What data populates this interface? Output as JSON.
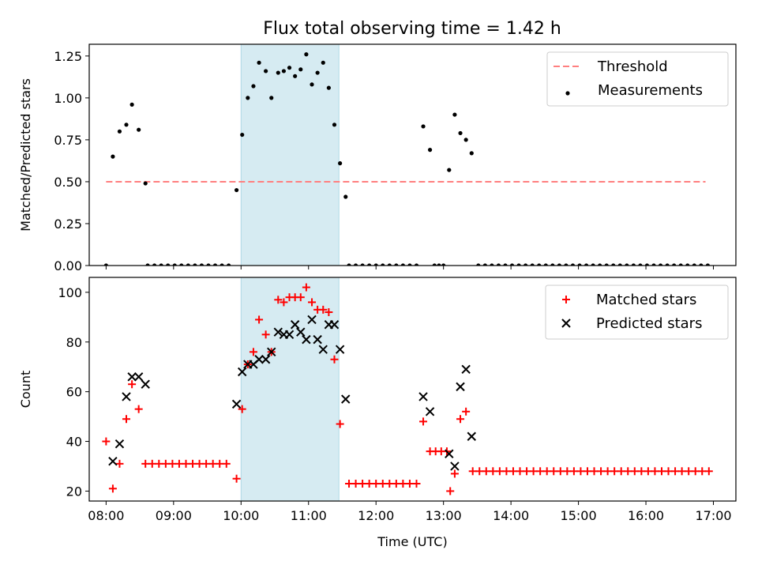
{
  "figure": {
    "title": "Flux total observing time = 1.42 h"
  },
  "chart_data": [
    {
      "type": "scatter",
      "panel": "top",
      "title": "Flux total observing time = 1.42 h",
      "ylabel": "Matched/Predicted stars",
      "xlabel": "",
      "xlim": [
        "07:45",
        "17:20"
      ],
      "ylim": [
        0,
        1.32
      ],
      "yticks": [
        "0.00",
        "0.25",
        "0.50",
        "0.75",
        "1.00",
        "1.25"
      ],
      "xticks": [
        "08:00",
        "09:00",
        "10:00",
        "11:00",
        "12:00",
        "13:00",
        "14:00",
        "15:00",
        "16:00",
        "17:00"
      ],
      "shaded_span": {
        "start": "10:00",
        "end": "11:27",
        "color": "#add8e6"
      },
      "threshold": {
        "name": "Threshold",
        "value": 0.5,
        "start": "08:00",
        "end": "16:53",
        "color": "#ff7f7f"
      },
      "legend": [
        "Threshold",
        "Measurements"
      ],
      "legend_position": "top-right",
      "series": [
        {
          "name": "Measurements",
          "color": "#000000",
          "marker": "dot",
          "points": [
            [
              "08:00",
              0.0
            ],
            [
              "08:06",
              0.65
            ],
            [
              "08:12",
              0.8
            ],
            [
              "08:18",
              0.84
            ],
            [
              "08:23",
              0.96
            ],
            [
              "08:29",
              0.81
            ],
            [
              "08:35",
              0.49
            ],
            [
              "08:37",
              0.0
            ],
            [
              "08:43",
              0.0
            ],
            [
              "08:49",
              0.0
            ],
            [
              "08:55",
              0.0
            ],
            [
              "09:01",
              0.0
            ],
            [
              "09:07",
              0.0
            ],
            [
              "09:13",
              0.0
            ],
            [
              "09:19",
              0.0
            ],
            [
              "09:25",
              0.0
            ],
            [
              "09:31",
              0.0
            ],
            [
              "09:37",
              0.0
            ],
            [
              "09:43",
              0.0
            ],
            [
              "09:49",
              0.0
            ],
            [
              "09:56",
              0.45
            ],
            [
              "10:01",
              0.78
            ],
            [
              "10:06",
              1.0
            ],
            [
              "10:11",
              1.07
            ],
            [
              "10:16",
              1.21
            ],
            [
              "10:22",
              1.16
            ],
            [
              "10:27",
              1.0
            ],
            [
              "10:33",
              1.15
            ],
            [
              "10:38",
              1.16
            ],
            [
              "10:43",
              1.18
            ],
            [
              "10:48",
              1.13
            ],
            [
              "10:53",
              1.17
            ],
            [
              "10:58",
              1.26
            ],
            [
              "11:03",
              1.08
            ],
            [
              "11:08",
              1.15
            ],
            [
              "11:13",
              1.21
            ],
            [
              "11:18",
              1.06
            ],
            [
              "11:23",
              0.84
            ],
            [
              "11:28",
              0.61
            ],
            [
              "11:33",
              0.41
            ],
            [
              "11:36",
              0.0
            ],
            [
              "11:42",
              0.0
            ],
            [
              "11:48",
              0.0
            ],
            [
              "11:54",
              0.0
            ],
            [
              "12:00",
              0.0
            ],
            [
              "12:06",
              0.0
            ],
            [
              "12:12",
              0.0
            ],
            [
              "12:18",
              0.0
            ],
            [
              "12:24",
              0.0
            ],
            [
              "12:30",
              0.0
            ],
            [
              "12:36",
              0.0
            ],
            [
              "12:42",
              0.83
            ],
            [
              "12:48",
              0.69
            ],
            [
              "12:52",
              0.0
            ],
            [
              "12:56",
              0.0
            ],
            [
              "13:00",
              0.0
            ],
            [
              "13:05",
              0.57
            ],
            [
              "13:10",
              0.9
            ],
            [
              "13:15",
              0.79
            ],
            [
              "13:20",
              0.75
            ],
            [
              "13:25",
              0.67
            ],
            [
              "13:31",
              0.0
            ],
            [
              "13:37",
              0.0
            ],
            [
              "13:43",
              0.0
            ],
            [
              "13:49",
              0.0
            ],
            [
              "13:55",
              0.0
            ],
            [
              "14:01",
              0.0
            ],
            [
              "14:07",
              0.0
            ],
            [
              "14:13",
              0.0
            ],
            [
              "14:19",
              0.0
            ],
            [
              "14:25",
              0.0
            ],
            [
              "14:31",
              0.0
            ],
            [
              "14:37",
              0.0
            ],
            [
              "14:43",
              0.0
            ],
            [
              "14:49",
              0.0
            ],
            [
              "14:55",
              0.0
            ],
            [
              "15:01",
              0.0
            ],
            [
              "15:07",
              0.0
            ],
            [
              "15:13",
              0.0
            ],
            [
              "15:19",
              0.0
            ],
            [
              "15:25",
              0.0
            ],
            [
              "15:31",
              0.0
            ],
            [
              "15:37",
              0.0
            ],
            [
              "15:43",
              0.0
            ],
            [
              "15:49",
              0.0
            ],
            [
              "15:55",
              0.0
            ],
            [
              "16:01",
              0.0
            ],
            [
              "16:07",
              0.0
            ],
            [
              "16:13",
              0.0
            ],
            [
              "16:19",
              0.0
            ],
            [
              "16:25",
              0.0
            ],
            [
              "16:31",
              0.0
            ],
            [
              "16:37",
              0.0
            ],
            [
              "16:43",
              0.0
            ],
            [
              "16:49",
              0.0
            ],
            [
              "16:55",
              0.0
            ]
          ]
        }
      ]
    },
    {
      "type": "scatter",
      "panel": "bottom",
      "title": "",
      "ylabel": "Count",
      "xlabel": "Time (UTC)",
      "xlim": [
        "07:45",
        "17:20"
      ],
      "ylim": [
        16,
        106
      ],
      "yticks": [
        "20",
        "40",
        "60",
        "80",
        "100"
      ],
      "xticks": [
        "08:00",
        "09:00",
        "10:00",
        "11:00",
        "12:00",
        "13:00",
        "14:00",
        "15:00",
        "16:00",
        "17:00"
      ],
      "shaded_span": {
        "start": "10:00",
        "end": "11:27",
        "color": "#add8e6"
      },
      "legend": [
        "Matched stars",
        "Predicted stars"
      ],
      "legend_position": "top-right",
      "series": [
        {
          "name": "Matched stars",
          "color": "#ff0000",
          "marker": "plus",
          "points": [
            [
              "08:00",
              40
            ],
            [
              "08:06",
              21
            ],
            [
              "08:12",
              31
            ],
            [
              "08:18",
              49
            ],
            [
              "08:23",
              63
            ],
            [
              "08:29",
              53
            ],
            [
              "08:35",
              31
            ],
            [
              "08:41",
              31
            ],
            [
              "08:47",
              31
            ],
            [
              "08:53",
              31
            ],
            [
              "08:59",
              31
            ],
            [
              "09:05",
              31
            ],
            [
              "09:11",
              31
            ],
            [
              "09:17",
              31
            ],
            [
              "09:23",
              31
            ],
            [
              "09:29",
              31
            ],
            [
              "09:35",
              31
            ],
            [
              "09:41",
              31
            ],
            [
              "09:47",
              31
            ],
            [
              "09:56",
              25
            ],
            [
              "10:01",
              53
            ],
            [
              "10:06",
              71
            ],
            [
              "10:11",
              76
            ],
            [
              "10:16",
              89
            ],
            [
              "10:22",
              83
            ],
            [
              "10:27",
              76
            ],
            [
              "10:33",
              97
            ],
            [
              "10:38",
              96
            ],
            [
              "10:43",
              98
            ],
            [
              "10:48",
              98
            ],
            [
              "10:53",
              98
            ],
            [
              "10:58",
              102
            ],
            [
              "11:03",
              96
            ],
            [
              "11:08",
              93
            ],
            [
              "11:13",
              93
            ],
            [
              "11:18",
              92
            ],
            [
              "11:23",
              73
            ],
            [
              "11:28",
              47
            ],
            [
              "11:36",
              23
            ],
            [
              "11:42",
              23
            ],
            [
              "11:48",
              23
            ],
            [
              "11:54",
              23
            ],
            [
              "12:00",
              23
            ],
            [
              "12:06",
              23
            ],
            [
              "12:12",
              23
            ],
            [
              "12:18",
              23
            ],
            [
              "12:24",
              23
            ],
            [
              "12:30",
              23
            ],
            [
              "12:36",
              23
            ],
            [
              "12:42",
              48
            ],
            [
              "12:48",
              36
            ],
            [
              "12:53",
              36
            ],
            [
              "12:58",
              36
            ],
            [
              "13:03",
              36
            ],
            [
              "13:06",
              20
            ],
            [
              "13:10",
              27
            ],
            [
              "13:15",
              49
            ],
            [
              "13:20",
              52
            ],
            [
              "13:26",
              28
            ],
            [
              "13:32",
              28
            ],
            [
              "13:38",
              28
            ],
            [
              "13:44",
              28
            ],
            [
              "13:50",
              28
            ],
            [
              "13:56",
              28
            ],
            [
              "14:02",
              28
            ],
            [
              "14:08",
              28
            ],
            [
              "14:14",
              28
            ],
            [
              "14:20",
              28
            ],
            [
              "14:26",
              28
            ],
            [
              "14:32",
              28
            ],
            [
              "14:38",
              28
            ],
            [
              "14:44",
              28
            ],
            [
              "14:50",
              28
            ],
            [
              "14:56",
              28
            ],
            [
              "15:02",
              28
            ],
            [
              "15:08",
              28
            ],
            [
              "15:14",
              28
            ],
            [
              "15:20",
              28
            ],
            [
              "15:26",
              28
            ],
            [
              "15:32",
              28
            ],
            [
              "15:38",
              28
            ],
            [
              "15:44",
              28
            ],
            [
              "15:50",
              28
            ],
            [
              "15:56",
              28
            ],
            [
              "16:02",
              28
            ],
            [
              "16:08",
              28
            ],
            [
              "16:14",
              28
            ],
            [
              "16:20",
              28
            ],
            [
              "16:26",
              28
            ],
            [
              "16:32",
              28
            ],
            [
              "16:38",
              28
            ],
            [
              "16:44",
              28
            ],
            [
              "16:50",
              28
            ],
            [
              "16:56",
              28
            ]
          ]
        },
        {
          "name": "Predicted stars",
          "color": "#000000",
          "marker": "x",
          "points": [
            [
              "08:06",
              32
            ],
            [
              "08:12",
              39
            ],
            [
              "08:18",
              58
            ],
            [
              "08:23",
              66
            ],
            [
              "08:29",
              66
            ],
            [
              "08:35",
              63
            ],
            [
              "09:56",
              55
            ],
            [
              "10:01",
              68
            ],
            [
              "10:06",
              71
            ],
            [
              "10:11",
              71
            ],
            [
              "10:16",
              73
            ],
            [
              "10:22",
              73
            ],
            [
              "10:27",
              76
            ],
            [
              "10:33",
              84
            ],
            [
              "10:38",
              83
            ],
            [
              "10:43",
              83
            ],
            [
              "10:48",
              87
            ],
            [
              "10:53",
              84
            ],
            [
              "10:58",
              81
            ],
            [
              "11:03",
              89
            ],
            [
              "11:08",
              81
            ],
            [
              "11:13",
              77
            ],
            [
              "11:18",
              87
            ],
            [
              "11:23",
              87
            ],
            [
              "11:28",
              77
            ],
            [
              "11:33",
              57
            ],
            [
              "12:42",
              58
            ],
            [
              "12:48",
              52
            ],
            [
              "13:05",
              35
            ],
            [
              "13:10",
              30
            ],
            [
              "13:15",
              62
            ],
            [
              "13:20",
              69
            ],
            [
              "13:25",
              42
            ]
          ]
        }
      ]
    }
  ]
}
